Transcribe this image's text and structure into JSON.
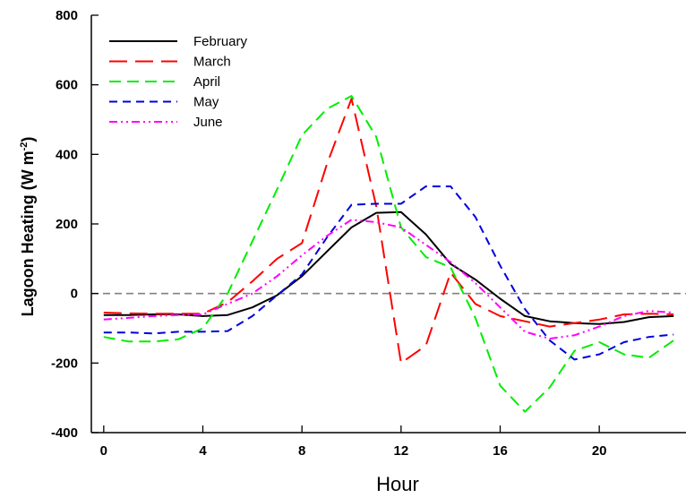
{
  "chart_data": {
    "type": "line",
    "xlabel": "Hour",
    "ylabel_main": "Lagoon Heating (W m",
    "ylabel_sup": "-2",
    "ylabel_close": ")",
    "xlim": [
      -0.5,
      23.5
    ],
    "ylim": [
      -400,
      800
    ],
    "xticks": [
      0,
      4,
      8,
      12,
      16,
      20
    ],
    "yticks": [
      -400,
      -200,
      0,
      200,
      400,
      600,
      800
    ],
    "xtick_labels": [
      "0",
      "4",
      "8",
      "12",
      "16",
      "20"
    ],
    "ytick_labels": [
      "-400",
      "-200",
      "0",
      "200",
      "400",
      "600",
      "800"
    ],
    "reference_line": {
      "y": 0,
      "color": "#808080"
    },
    "grid": false,
    "legend_position": "top-left",
    "x": [
      0,
      1,
      2,
      3,
      4,
      5,
      6,
      7,
      8,
      9,
      10,
      11,
      12,
      13,
      14,
      15,
      16,
      17,
      18,
      19,
      20,
      21,
      22,
      23
    ],
    "series": [
      {
        "name": "February",
        "color": "#000000",
        "dash": "solid",
        "values": [
          -62,
          -62,
          -60,
          -60,
          -65,
          -62,
          -40,
          -5,
          50,
          120,
          190,
          232,
          234,
          170,
          85,
          40,
          -15,
          -65,
          -80,
          -85,
          -88,
          -82,
          -68,
          -65
        ]
      },
      {
        "name": "March",
        "color": "#ff0000",
        "dash": "longdash",
        "values": [
          -55,
          -57,
          -58,
          -58,
          -58,
          -25,
          35,
          100,
          145,
          370,
          560,
          250,
          -200,
          -150,
          60,
          -30,
          -65,
          -80,
          -95,
          -85,
          -75,
          -60,
          -58,
          -60
        ]
      },
      {
        "name": "April",
        "color": "#00ee00",
        "dash": "dash",
        "values": [
          -125,
          -138,
          -138,
          -132,
          -100,
          0,
          150,
          300,
          455,
          530,
          568,
          450,
          190,
          105,
          75,
          -70,
          -265,
          -340,
          -270,
          -165,
          -140,
          -175,
          -185,
          -135
        ]
      },
      {
        "name": "May",
        "color": "#0000dd",
        "dash": "shortdash",
        "values": [
          -112,
          -112,
          -115,
          -110,
          -110,
          -108,
          -65,
          -5,
          55,
          160,
          255,
          258,
          258,
          308,
          308,
          220,
          80,
          -45,
          -135,
          -190,
          -175,
          -140,
          -125,
          -118
        ]
      },
      {
        "name": "June",
        "color": "#ff00ff",
        "dash": "dashdotdot",
        "values": [
          -75,
          -70,
          -65,
          -62,
          -60,
          -30,
          0,
          50,
          110,
          165,
          212,
          205,
          190,
          140,
          90,
          30,
          -40,
          -110,
          -130,
          -120,
          -95,
          -65,
          -50,
          -55
        ]
      }
    ]
  }
}
